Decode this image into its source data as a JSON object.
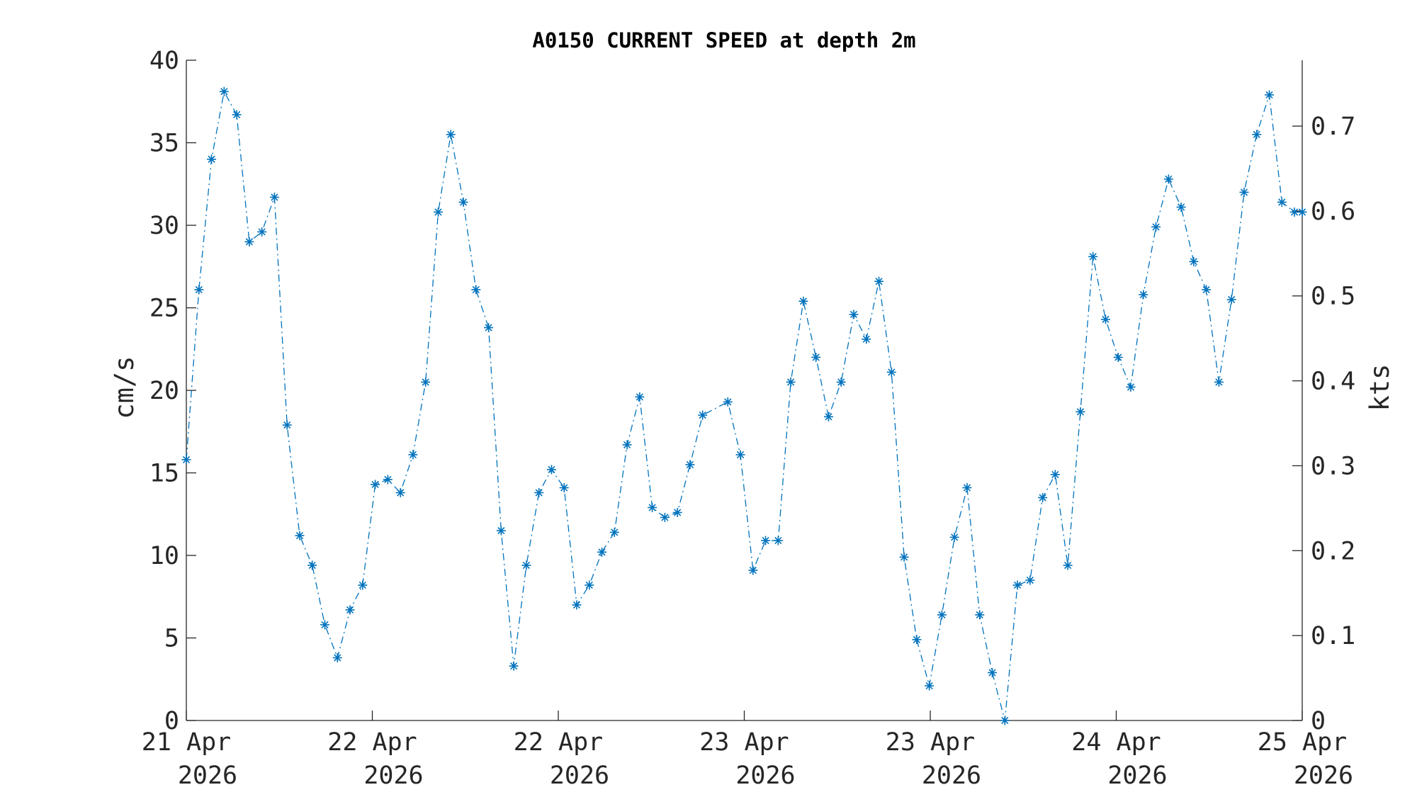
{
  "chart_data": {
    "type": "line",
    "title": "A0150 CURRENT SPEED at depth 2m",
    "ylabel": "cm/s",
    "y2label": "kts",
    "ylim": [
      0,
      40
    ],
    "y2lim": [
      0,
      0.7776
    ],
    "yticks": [
      0,
      5,
      10,
      15,
      20,
      25,
      30,
      35,
      40
    ],
    "y2ticks": [
      0,
      0.1,
      0.2,
      0.3,
      0.4,
      0.5,
      0.6,
      0.7
    ],
    "y2tick_labels": [
      "0",
      "0.1",
      "0.2",
      "0.3",
      "0.4",
      "0.5",
      "0.6",
      "0.7"
    ],
    "xlim": [
      "2026-04-21T00:00",
      "2026-04-25T00:00"
    ],
    "xticks": [
      "2026-04-21T00:00",
      "2026-04-21T16:00",
      "2026-04-22T08:00",
      "2026-04-23T00:00",
      "2026-04-23T16:00",
      "2026-04-24T08:00",
      "2026-04-25T00:00"
    ],
    "xtick_labels": [
      [
        "21 Apr",
        "2026"
      ],
      [
        "22 Apr",
        "2026"
      ],
      [
        "22 Apr",
        "2026"
      ],
      [
        "23 Apr",
        "2026"
      ],
      [
        "23 Apr",
        "2026"
      ],
      [
        "24 Apr",
        "2026"
      ],
      [
        "25 Apr",
        "2026"
      ]
    ],
    "grid": false,
    "line_style": "dash-dot",
    "marker": "asterisk",
    "color": "#0072BD",
    "series": [
      {
        "x": [
          "2026-04-21T00:00",
          "2026-04-21T01:05",
          "2026-04-21T02:10",
          "2026-04-21T03:15",
          "2026-04-21T04:20",
          "2026-04-21T05:25",
          "2026-04-21T06:30",
          "2026-04-21T07:35",
          "2026-04-21T08:40",
          "2026-04-21T09:45",
          "2026-04-21T10:50",
          "2026-04-21T11:55",
          "2026-04-21T13:00",
          "2026-04-21T14:05",
          "2026-04-21T15:10",
          "2026-04-21T16:15",
          "2026-04-21T17:20",
          "2026-04-21T18:25",
          "2026-04-21T19:30",
          "2026-04-21T20:35",
          "2026-04-21T21:40",
          "2026-04-21T22:45",
          "2026-04-21T23:50",
          "2026-04-22T00:55",
          "2026-04-22T02:00",
          "2026-04-22T03:05",
          "2026-04-22T04:10",
          "2026-04-22T05:15",
          "2026-04-22T06:20",
          "2026-04-22T07:25",
          "2026-04-22T08:30",
          "2026-04-22T09:35",
          "2026-04-22T10:40",
          "2026-04-22T11:45",
          "2026-04-22T12:50",
          "2026-04-22T13:55",
          "2026-04-22T15:00",
          "2026-04-22T16:05",
          "2026-04-22T17:10",
          "2026-04-22T18:15",
          "2026-04-22T19:20",
          "2026-04-22T20:25",
          "2026-04-22T22:35",
          "2026-04-22T23:40",
          "2026-04-23T00:45",
          "2026-04-23T01:50",
          "2026-04-23T02:55",
          "2026-04-23T04:00",
          "2026-04-23T05:05",
          "2026-04-23T06:10",
          "2026-04-23T07:15",
          "2026-04-23T08:20",
          "2026-04-23T09:25",
          "2026-04-23T10:30",
          "2026-04-23T11:35",
          "2026-04-23T12:40",
          "2026-04-23T13:45",
          "2026-04-23T14:50",
          "2026-04-23T15:55",
          "2026-04-23T17:00",
          "2026-04-23T18:05",
          "2026-04-23T19:10",
          "2026-04-23T20:15",
          "2026-04-23T21:20",
          "2026-04-23T22:25",
          "2026-04-23T23:30",
          "2026-04-24T00:35",
          "2026-04-24T01:40",
          "2026-04-24T02:45",
          "2026-04-24T03:50",
          "2026-04-24T04:55",
          "2026-04-24T06:00",
          "2026-04-24T07:05",
          "2026-04-24T08:10",
          "2026-04-24T09:15",
          "2026-04-24T10:20",
          "2026-04-24T11:25",
          "2026-04-24T12:30",
          "2026-04-24T13:35",
          "2026-04-24T14:40",
          "2026-04-24T15:45",
          "2026-04-24T16:50",
          "2026-04-24T17:55",
          "2026-04-24T19:00",
          "2026-04-24T20:05",
          "2026-04-24T21:10",
          "2026-04-24T22:15",
          "2026-04-24T23:20",
          "2026-04-25T00:00"
        ],
        "values": [
          15.8,
          26.1,
          34.0,
          38.1,
          36.7,
          29.0,
          29.6,
          31.7,
          17.9,
          11.2,
          9.4,
          5.8,
          3.8,
          6.7,
          8.2,
          14.3,
          14.6,
          13.8,
          16.1,
          20.5,
          30.8,
          35.5,
          31.4,
          26.1,
          23.8,
          11.5,
          3.3,
          9.4,
          13.8,
          15.2,
          14.1,
          7.0,
          8.2,
          10.2,
          11.4,
          16.7,
          19.6,
          12.9,
          12.3,
          12.6,
          15.5,
          18.5,
          19.3,
          16.1,
          9.1,
          10.9,
          10.9,
          20.5,
          25.4,
          22.0,
          18.4,
          20.5,
          24.6,
          23.1,
          26.6,
          21.1,
          9.9,
          4.9,
          2.1,
          6.4,
          11.1,
          14.1,
          6.4,
          2.9,
          0.0,
          8.2,
          8.5,
          13.5,
          14.9,
          9.4,
          18.7,
          28.1,
          24.3,
          22.0,
          20.2,
          25.8,
          29.9,
          32.8,
          31.1,
          27.8,
          26.1,
          20.5,
          25.5,
          32.0,
          35.5,
          37.9,
          31.4,
          30.8,
          30.8
        ]
      }
    ]
  }
}
